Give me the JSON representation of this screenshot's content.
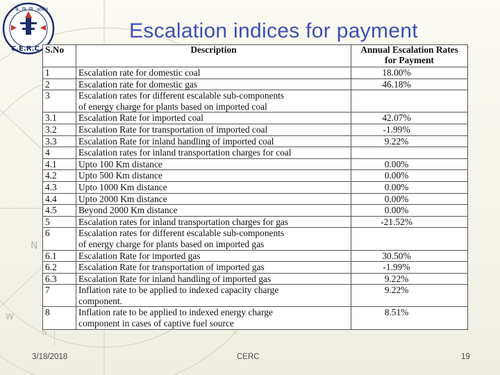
{
  "slide": {
    "title": "Escalation indices for payment",
    "logo_text_top": "के. वि. वि. आयोग",
    "logo_text_bottom": "C.E.R.C",
    "footer": {
      "date": "3/18/2018",
      "center": "CERC",
      "page": "19"
    }
  },
  "table": {
    "headers": [
      "S.No",
      "Description",
      "Annual Escalation Rates for Payment"
    ],
    "rows": [
      {
        "sno": "1",
        "desc": [
          "Escalation rate for domestic coal"
        ],
        "rate": "18.00%"
      },
      {
        "sno": "2",
        "desc": [
          "Escalation rate for domestic gas"
        ],
        "rate": "46.18%"
      },
      {
        "sno": "3",
        "desc": [
          "Escalation rates for different escalable sub-components",
          "of energy charge for plants based on imported coal"
        ],
        "rate": ""
      },
      {
        "sno": "3.1",
        "desc": [
          "Escalation Rate for imported coal"
        ],
        "rate": "42.07%"
      },
      {
        "sno": "3.2",
        "desc": [
          "Escalation Rate for transportation of imported coal"
        ],
        "rate": "-1.99%"
      },
      {
        "sno": "3.3",
        "desc": [
          "Escalation Rate for inland handling of imported coal"
        ],
        "rate": "9.22%"
      },
      {
        "sno": "4",
        "desc": [
          "Escalation rates for inland transportation charges for coal"
        ],
        "rate": ""
      },
      {
        "sno": "4.1",
        "desc": [
          "Upto 100 Km distance"
        ],
        "rate": "0.00%"
      },
      {
        "sno": "4.2",
        "desc": [
          "Upto 500 Km distance"
        ],
        "rate": "0.00%"
      },
      {
        "sno": "4.3",
        "desc": [
          "Upto 1000 Km distance"
        ],
        "rate": "0.00%"
      },
      {
        "sno": "4.4",
        "desc": [
          "Upto 2000 Km distance"
        ],
        "rate": "0.00%"
      },
      {
        "sno": "4.5",
        "desc": [
          "Beyond 2000 Km distance"
        ],
        "rate": "0.00%"
      },
      {
        "sno": "5",
        "desc": [
          "Escalation rates for inland transportation charges for gas"
        ],
        "rate": "-21.52%"
      },
      {
        "sno": "6",
        "desc": [
          "Escalation rates for different escalable sub-components",
          "of energy charge for plants based on imported gas"
        ],
        "rate": ""
      },
      {
        "sno": "6.1",
        "desc": [
          "Escalation Rate for imported gas"
        ],
        "rate": "30.50%"
      },
      {
        "sno": "6.2",
        "desc": [
          "Escalation Rate for transportation of imported gas"
        ],
        "rate": "-1.99%"
      },
      {
        "sno": "6.3",
        "desc": [
          "Escalation Rate for inland handling of imported gas"
        ],
        "rate": "9.22%"
      },
      {
        "sno": "7",
        "desc": [
          "Inflation rate to be applied to indexed capacity charge",
          "component."
        ],
        "rate": "9.22%"
      },
      {
        "sno": "8",
        "desc": [
          "Inflation rate to be applied to indexed energy charge",
          "component in cases of captive fuel source"
        ],
        "rate": "8.51%"
      }
    ]
  },
  "colors": {
    "title": "#3d4fb5",
    "logo_red": "#c0392b",
    "logo_navy": "#1d2f6b"
  }
}
